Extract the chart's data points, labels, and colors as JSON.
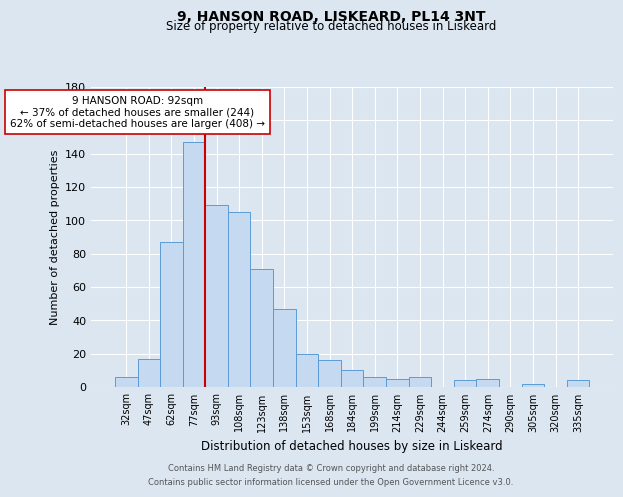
{
  "title": "9, HANSON ROAD, LISKEARD, PL14 3NT",
  "subtitle": "Size of property relative to detached houses in Liskeard",
  "xlabel": "Distribution of detached houses by size in Liskeard",
  "ylabel": "Number of detached properties",
  "bar_labels": [
    "32sqm",
    "47sqm",
    "62sqm",
    "77sqm",
    "93sqm",
    "108sqm",
    "123sqm",
    "138sqm",
    "153sqm",
    "168sqm",
    "184sqm",
    "199sqm",
    "214sqm",
    "229sqm",
    "244sqm",
    "259sqm",
    "274sqm",
    "290sqm",
    "305sqm",
    "320sqm",
    "335sqm"
  ],
  "bar_values": [
    6,
    17,
    87,
    147,
    109,
    105,
    71,
    47,
    20,
    16,
    10,
    6,
    5,
    6,
    0,
    4,
    5,
    0,
    2,
    0,
    4
  ],
  "bar_color": "#c5d9f1",
  "bar_edge_color": "#5b9bd5",
  "vline_color": "#cc0000",
  "vline_pos": 3.5,
  "ylim": [
    0,
    180
  ],
  "yticks": [
    0,
    20,
    40,
    60,
    80,
    100,
    120,
    140,
    160,
    180
  ],
  "annotation_title": "9 HANSON ROAD: 92sqm",
  "annotation_line1": "← 37% of detached houses are smaller (244)",
  "annotation_line2": "62% of semi-detached houses are larger (408) →",
  "annotation_box_color": "#ffffff",
  "annotation_box_edge": "#cc0000",
  "footer_line1": "Contains HM Land Registry data © Crown copyright and database right 2024.",
  "footer_line2": "Contains public sector information licensed under the Open Government Licence v3.0.",
  "bg_color": "#dce6f1",
  "plot_bg_color": "#dce6f1",
  "grid_color": "#ffffff",
  "title_fontsize": 10,
  "subtitle_fontsize": 8.5,
  "ylabel_fontsize": 8,
  "xlabel_fontsize": 8.5
}
